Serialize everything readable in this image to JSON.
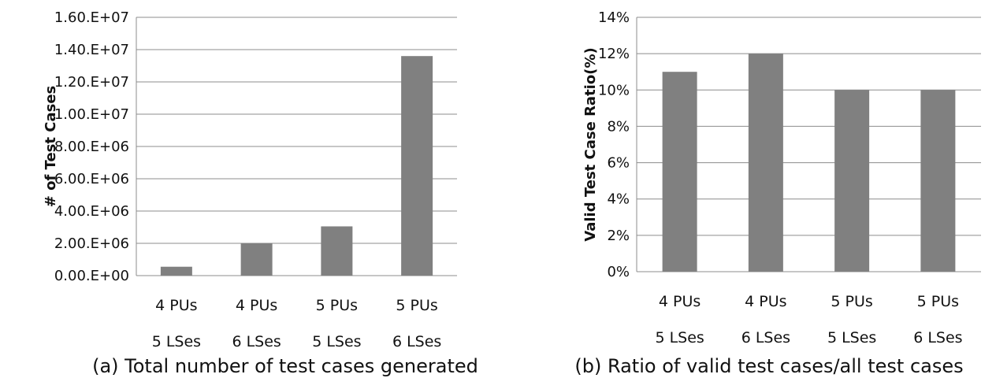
{
  "chart_data": [
    {
      "type": "bar",
      "caption": "(a) Total number of test cases generated",
      "ylabel": "# of Test Cases",
      "xlabel": "",
      "categories": [
        [
          "4 PUs",
          "5 LSes"
        ],
        [
          "4 PUs",
          "6 LSes"
        ],
        [
          "5 PUs",
          "5 LSes"
        ],
        [
          "5 PUs",
          "6 LSes"
        ]
      ],
      "values": [
        550000,
        2000000,
        3050000,
        13600000
      ],
      "ylim": [
        0,
        16000000
      ],
      "yticks": [
        0,
        2000000,
        4000000,
        6000000,
        8000000,
        10000000,
        12000000,
        14000000,
        16000000
      ],
      "ytick_labels": [
        "0.00.E+00",
        "2.00.E+06",
        "4.00.E+06",
        "6.00.E+06",
        "8.00.E+06",
        "1.00.E+07",
        "1.20.E+07",
        "1.40.E+07",
        "1.60.E+07"
      ],
      "grid": true,
      "bar_color": "#808080"
    },
    {
      "type": "bar",
      "caption": "(b) Ratio of valid test cases/all test cases",
      "ylabel": "Valid Test Case Ratio(%)",
      "xlabel": "",
      "categories": [
        [
          "4 PUs",
          "5 LSes"
        ],
        [
          "4 PUs",
          "6 LSes"
        ],
        [
          "5 PUs",
          "5 LSes"
        ],
        [
          "5 PUs",
          "6 LSes"
        ]
      ],
      "values": [
        11,
        12,
        10,
        10
      ],
      "ylim": [
        0,
        14
      ],
      "yticks": [
        0,
        2,
        4,
        6,
        8,
        10,
        12,
        14
      ],
      "ytick_labels": [
        "0%",
        "2%",
        "4%",
        "6%",
        "8%",
        "10%",
        "12%",
        "14%"
      ],
      "grid": true,
      "bar_color": "#808080"
    }
  ]
}
